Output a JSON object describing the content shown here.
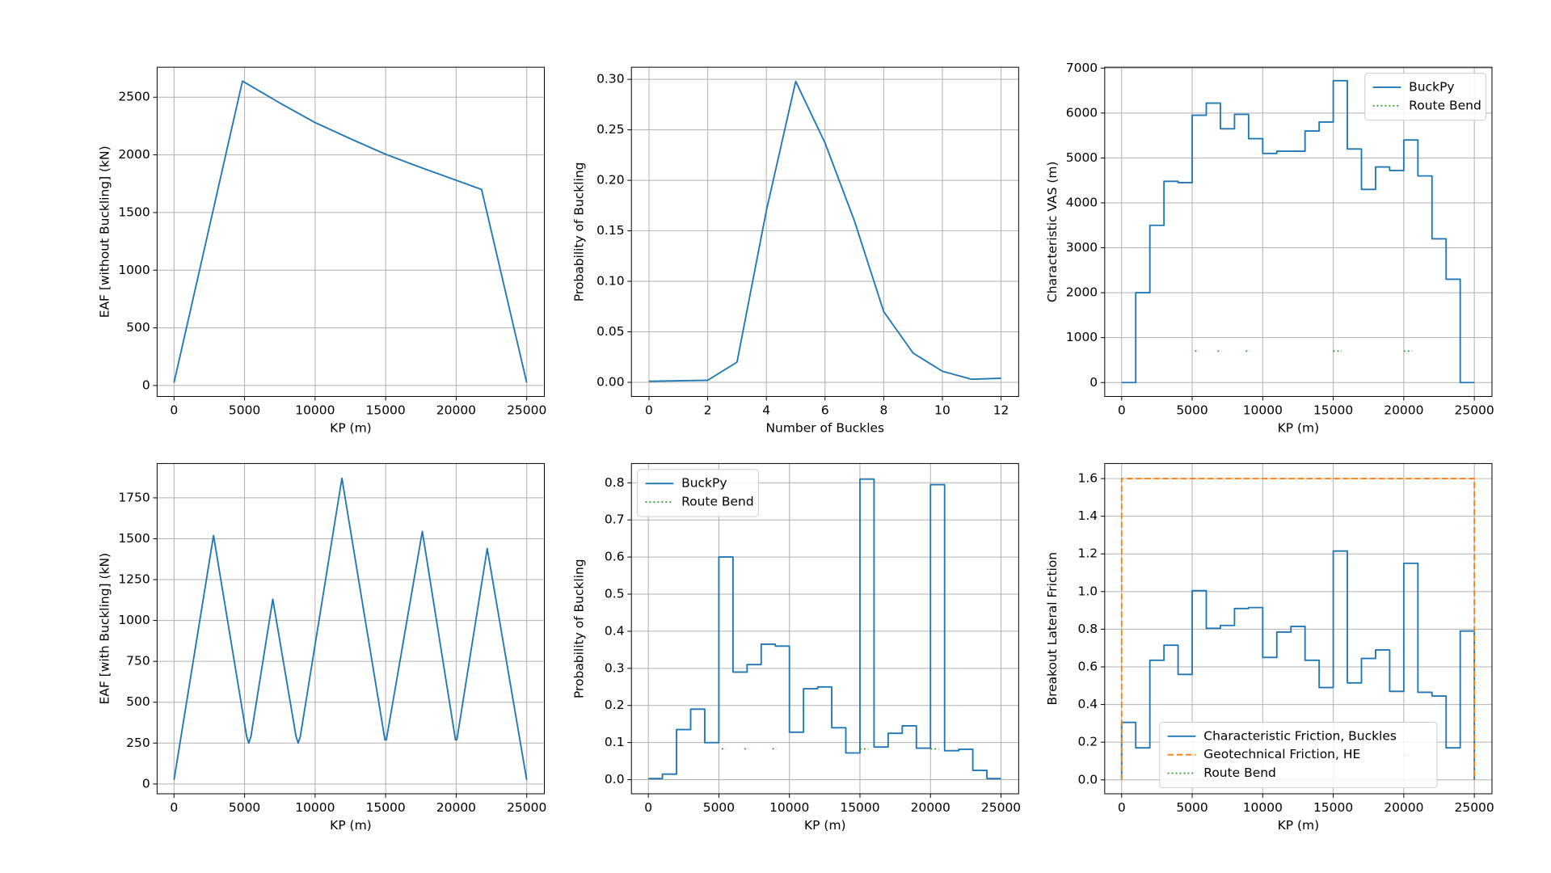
{
  "chart_data": [
    {
      "type": "line",
      "xlabel": "KP (m)",
      "ylabel": "EAF [without Buckling] (kN)",
      "grid": true,
      "xlim": [
        -1200,
        26250
      ],
      "ylim": [
        -95,
        2760
      ],
      "xticks": [
        0,
        5000,
        10000,
        15000,
        20000,
        25000
      ],
      "yticks": [
        0,
        500,
        1000,
        1500,
        2000,
        2500
      ],
      "series": [
        {
          "color": "#1f77b4",
          "linestyle": "solid",
          "drawstyle": "default",
          "x": [
            0,
            4850,
            7500,
            10000,
            12500,
            15000,
            17500,
            20000,
            21800,
            25000
          ],
          "values": [
            25,
            2640,
            2450,
            2280,
            2140,
            2005,
            1890,
            1780,
            1700,
            25
          ]
        }
      ]
    },
    {
      "type": "line",
      "xlabel": "Number of Buckles",
      "ylabel": "Probability of Buckling",
      "grid": true,
      "xlim": [
        -0.6,
        12.6
      ],
      "ylim": [
        -0.014,
        0.312
      ],
      "xticks": [
        0,
        2,
        4,
        6,
        8,
        10,
        12
      ],
      "yticks": [
        {
          "value": 0,
          "label": "0.00"
        },
        {
          "value": 0.05,
          "label": "0.05"
        },
        {
          "value": 0.1,
          "label": "0.10"
        },
        {
          "value": 0.15,
          "label": "0.15"
        },
        {
          "value": 0.2,
          "label": "0.20"
        },
        {
          "value": 0.25,
          "label": "0.25"
        },
        {
          "value": 0.3,
          "label": "0.30"
        }
      ],
      "series": [
        {
          "color": "#1f77b4",
          "linestyle": "solid",
          "drawstyle": "default",
          "x": [
            0,
            1,
            2,
            3,
            4,
            5,
            6,
            7,
            8,
            9,
            10,
            11,
            12
          ],
          "values": [
            0.001,
            0.0015,
            0.002,
            0.02,
            0.17,
            0.298,
            0.237,
            0.16,
            0.07,
            0.029,
            0.011,
            0.003,
            0.004
          ]
        }
      ]
    },
    {
      "type": "line",
      "xlabel": "KP (m)",
      "ylabel": "Characteristic VAS (m)",
      "grid": true,
      "legend": "upper right",
      "xlim": [
        -1200,
        26250
      ],
      "ylim": [
        -310,
        7020
      ],
      "xticks": [
        0,
        5000,
        10000,
        15000,
        20000,
        25000
      ],
      "yticks": [
        0,
        1000,
        2000,
        3000,
        4000,
        5000,
        6000,
        7000
      ],
      "series": [
        {
          "name": "BuckPy",
          "color": "#1f77b4",
          "linestyle": "solid",
          "drawstyle": "steps-post",
          "x": [
            0,
            1000,
            2000,
            3000,
            4000,
            5000,
            6000,
            7000,
            8000,
            9000,
            10000,
            11000,
            12000,
            13000,
            14000,
            15000,
            16000,
            17000,
            18000,
            19000,
            20000,
            21000,
            22000,
            23000,
            24000,
            25000
          ],
          "values": [
            0,
            2000,
            3500,
            4480,
            4450,
            5950,
            6220,
            5650,
            5970,
            5430,
            5100,
            5150,
            5150,
            5600,
            5800,
            6720,
            5200,
            4300,
            4800,
            4720,
            5400,
            4600,
            3200,
            2300,
            0,
            0
          ]
        },
        {
          "name": "Route Bend",
          "color": "#2ca02c",
          "linestyle": "dotted",
          "drawstyle": "default",
          "x": [
            5200,
            5500,
            null,
            6800,
            7100,
            null,
            8800,
            9100,
            null,
            15000,
            15600,
            null,
            20000,
            20600
          ],
          "values": [
            700,
            700,
            null,
            700,
            700,
            null,
            700,
            700,
            null,
            700,
            700,
            null,
            700,
            700
          ]
        }
      ]
    },
    {
      "type": "line",
      "xlabel": "KP (m)",
      "ylabel": "EAF [with Buckling] (kN)",
      "grid": true,
      "xlim": [
        -1200,
        26250
      ],
      "ylim": [
        -60,
        1960
      ],
      "xticks": [
        0,
        5000,
        10000,
        15000,
        20000,
        25000
      ],
      "yticks": [
        0,
        250,
        500,
        750,
        1000,
        1250,
        1500,
        1750
      ],
      "series": [
        {
          "color": "#1f77b4",
          "linestyle": "solid",
          "drawstyle": "default",
          "x": [
            0,
            2800,
            5150,
            5300,
            5450,
            7000,
            8650,
            8800,
            8950,
            11900,
            14950,
            15050,
            17600,
            19950,
            20050,
            22200,
            25000
          ],
          "values": [
            25,
            1520,
            290,
            250,
            290,
            1130,
            290,
            250,
            290,
            1870,
            270,
            270,
            1545,
            270,
            270,
            1440,
            25
          ]
        }
      ]
    },
    {
      "type": "line",
      "xlabel": "KP (m)",
      "ylabel": "Probability of Buckling",
      "grid": true,
      "legend": "upper left",
      "xlim": [
        -1200,
        26250
      ],
      "ylim": [
        -0.038,
        0.852
      ],
      "xticks": [
        0,
        5000,
        10000,
        15000,
        20000,
        25000
      ],
      "yticks": [
        {
          "value": 0,
          "label": "0.0"
        },
        {
          "value": 0.1,
          "label": "0.1"
        },
        {
          "value": 0.2,
          "label": "0.2"
        },
        {
          "value": 0.3,
          "label": "0.3"
        },
        {
          "value": 0.4,
          "label": "0.4"
        },
        {
          "value": 0.5,
          "label": "0.5"
        },
        {
          "value": 0.6,
          "label": "0.6"
        },
        {
          "value": 0.7,
          "label": "0.7"
        },
        {
          "value": 0.8,
          "label": "0.8"
        }
      ],
      "series": [
        {
          "name": "BuckPy",
          "color": "#1f77b4",
          "linestyle": "solid",
          "drawstyle": "steps-post",
          "x": [
            0,
            1000,
            2000,
            3000,
            4000,
            5000,
            6000,
            7000,
            8000,
            9000,
            10000,
            11000,
            12000,
            13000,
            14000,
            15000,
            16000,
            17000,
            18000,
            19000,
            20000,
            21000,
            22000,
            23000,
            24000,
            25000
          ],
          "values": [
            0.003,
            0.015,
            0.135,
            0.19,
            0.1,
            0.6,
            0.29,
            0.31,
            0.365,
            0.36,
            0.128,
            0.245,
            0.25,
            0.14,
            0.072,
            0.81,
            0.088,
            0.125,
            0.145,
            0.085,
            0.795,
            0.078,
            0.082,
            0.025,
            0.003,
            0.003
          ]
        },
        {
          "name": "Route Bend",
          "color": "#2ca02c",
          "linestyle": "dotted",
          "drawstyle": "default",
          "x": [
            5200,
            5500,
            null,
            6800,
            7100,
            null,
            8800,
            9100,
            null,
            15000,
            15600,
            null,
            20000,
            20600
          ],
          "values": [
            0.083,
            0.083,
            null,
            0.083,
            0.083,
            null,
            0.083,
            0.083,
            null,
            0.083,
            0.083,
            null,
            0.083,
            0.083
          ]
        }
      ]
    },
    {
      "type": "line",
      "xlabel": "KP (m)",
      "ylabel": "Breakout Lateral Friction",
      "grid": true,
      "legend": "lower center",
      "xlim": [
        -1200,
        26250
      ],
      "ylim": [
        -0.074,
        1.68
      ],
      "xticks": [
        0,
        5000,
        10000,
        15000,
        20000,
        25000
      ],
      "yticks": [
        {
          "value": 0,
          "label": "0.0"
        },
        {
          "value": 0.2,
          "label": "0.2"
        },
        {
          "value": 0.4,
          "label": "0.4"
        },
        {
          "value": 0.6,
          "label": "0.6"
        },
        {
          "value": 0.8,
          "label": "0.8"
        },
        {
          "value": 1,
          "label": "1.0"
        },
        {
          "value": 1.2,
          "label": "1.2"
        },
        {
          "value": 1.4,
          "label": "1.4"
        },
        {
          "value": 1.6,
          "label": "1.6"
        }
      ],
      "series": [
        {
          "name": "Characteristic Friction, Buckles",
          "color": "#1f77b4",
          "linestyle": "solid",
          "drawstyle": "steps-post",
          "x": [
            0,
            0,
            1000,
            2000,
            3000,
            4000,
            5000,
            6000,
            7000,
            8000,
            9000,
            10000,
            11000,
            12000,
            13000,
            14000,
            15000,
            16000,
            17000,
            18000,
            19000,
            20000,
            21000,
            22000,
            23000,
            24000,
            25000,
            25000
          ],
          "values": [
            0,
            0.305,
            0.17,
            0.635,
            0.715,
            0.56,
            1.005,
            0.805,
            0.82,
            0.91,
            0.915,
            0.65,
            0.785,
            0.815,
            0.635,
            0.49,
            1.215,
            0.515,
            0.645,
            0.69,
            0.47,
            1.15,
            0.465,
            0.445,
            0.17,
            0.79,
            0.79,
            0
          ]
        },
        {
          "name": "Geotechnical Friction, HE",
          "color": "#ff7f0e",
          "linestyle": "dashed",
          "drawstyle": "default",
          "x": [
            0,
            0,
            25000,
            25000
          ],
          "values": [
            0,
            1.6,
            1.6,
            0
          ]
        },
        {
          "name": "Route Bend",
          "color": "#2ca02c",
          "linestyle": "dotted",
          "drawstyle": "default",
          "x": [
            5200,
            5500,
            null,
            6800,
            7100,
            null,
            8800,
            9100,
            null,
            15000,
            15600,
            null,
            20000,
            20600
          ],
          "values": [
            0.13,
            0.13,
            null,
            0.13,
            0.13,
            null,
            0.13,
            0.13,
            null,
            0.13,
            0.13,
            null,
            0.13,
            0.13
          ]
        }
      ]
    }
  ]
}
